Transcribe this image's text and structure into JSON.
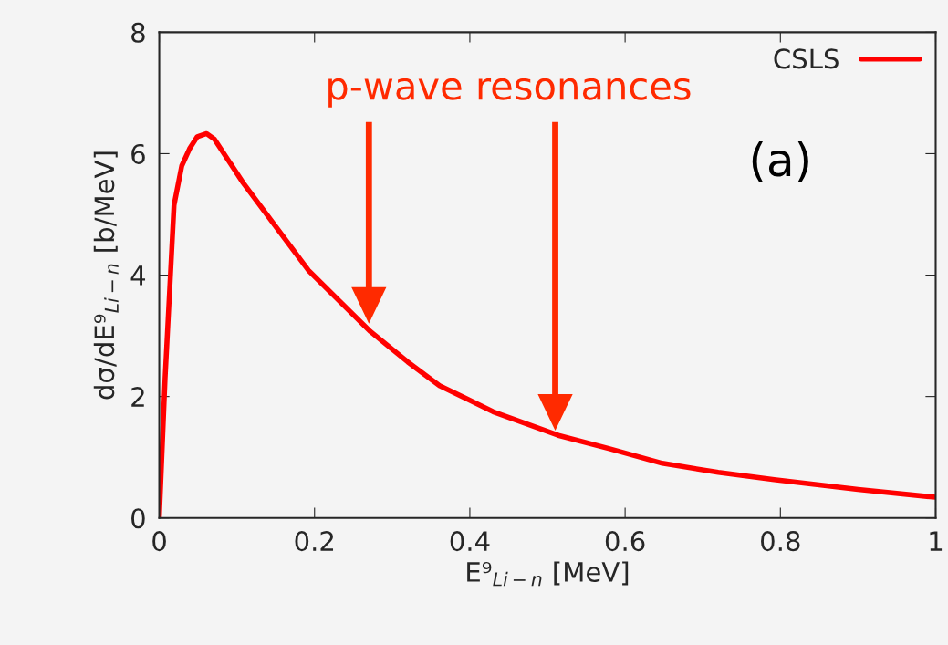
{
  "chart_data": {
    "type": "line",
    "xlabel": "E⁹$_{Li−n}$ [MeV]",
    "ylabel": "dσ/dE⁹$_{Li−n}$ [b/MeV]",
    "x": [
      0,
      0.0075,
      0.014,
      0.019,
      0.029,
      0.039,
      0.049,
      0.061,
      0.071,
      0.108,
      0.192,
      0.23,
      0.272,
      0.32,
      0.361,
      0.43,
      0.514,
      0.58,
      0.648,
      0.72,
      0.792,
      0.9,
      1.0
    ],
    "series": [
      {
        "name": "CSLS",
        "color": "#ff0000",
        "values": [
          0,
          2.3,
          3.9,
          5.15,
          5.8,
          6.08,
          6.28,
          6.33,
          6.24,
          5.52,
          4.08,
          3.6,
          3.07,
          2.57,
          2.18,
          1.75,
          1.36,
          1.14,
          0.9,
          0.75,
          0.63,
          0.47,
          0.34
        ]
      }
    ],
    "annotations": [
      "p-wave resonances",
      "(a)"
    ],
    "xlim": [
      0,
      1
    ],
    "ylim": [
      0,
      8
    ],
    "xticks": [
      0,
      0.2,
      0.4,
      0.6,
      0.8,
      1
    ],
    "yticks": [
      0,
      2,
      4,
      6,
      8
    ],
    "grid": false,
    "legend": "top right",
    "marker": "none",
    "line_style": "solid"
  }
}
